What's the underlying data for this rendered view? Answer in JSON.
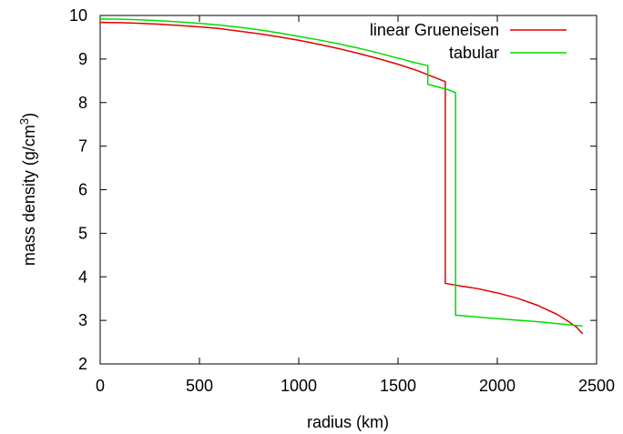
{
  "chart_data": {
    "type": "line",
    "xlabel": "radius (km)",
    "ylabel": {
      "prefix": "mass density (g/cm",
      "sup": "3",
      "suffix": ")"
    },
    "xlim": [
      0,
      2500
    ],
    "ylim": [
      2,
      10
    ],
    "xticks": [
      0,
      500,
      1000,
      1500,
      2000,
      2500
    ],
    "yticks": [
      2,
      3,
      4,
      5,
      6,
      7,
      8,
      9,
      10
    ],
    "grid": false,
    "legend_position": "top-right",
    "series": [
      {
        "name": "linear Grueneisen",
        "color": "#e00000",
        "x": [
          0,
          100,
          200,
          300,
          400,
          500,
          600,
          700,
          800,
          900,
          1000,
          1100,
          1200,
          1300,
          1400,
          1500,
          1600,
          1700,
          1738,
          1738,
          1738,
          1800,
          1900,
          2000,
          2100,
          2200,
          2300,
          2350,
          2400,
          2430
        ],
        "y": [
          9.84,
          9.835,
          9.82,
          9.8,
          9.77,
          9.74,
          9.7,
          9.64,
          9.58,
          9.51,
          9.43,
          9.34,
          9.24,
          9.13,
          9.01,
          8.88,
          8.73,
          8.55,
          8.48,
          8.48,
          3.85,
          3.8,
          3.73,
          3.63,
          3.51,
          3.35,
          3.14,
          3.0,
          2.84,
          2.69
        ]
      },
      {
        "name": "tabular",
        "color": "#00dd00",
        "x": [
          0,
          100,
          200,
          300,
          400,
          500,
          600,
          700,
          800,
          900,
          1000,
          1100,
          1200,
          1300,
          1400,
          1500,
          1600,
          1650,
          1650,
          1650,
          1700,
          1750,
          1790,
          1790,
          1790,
          2000,
          2200,
          2430
        ],
        "y": [
          9.92,
          9.915,
          9.9,
          9.88,
          9.85,
          9.82,
          9.78,
          9.73,
          9.67,
          9.6,
          9.52,
          9.44,
          9.35,
          9.25,
          9.14,
          9.02,
          8.9,
          8.85,
          8.85,
          8.42,
          8.36,
          8.3,
          8.23,
          8.23,
          3.12,
          3.04,
          2.97,
          2.87
        ]
      }
    ]
  }
}
